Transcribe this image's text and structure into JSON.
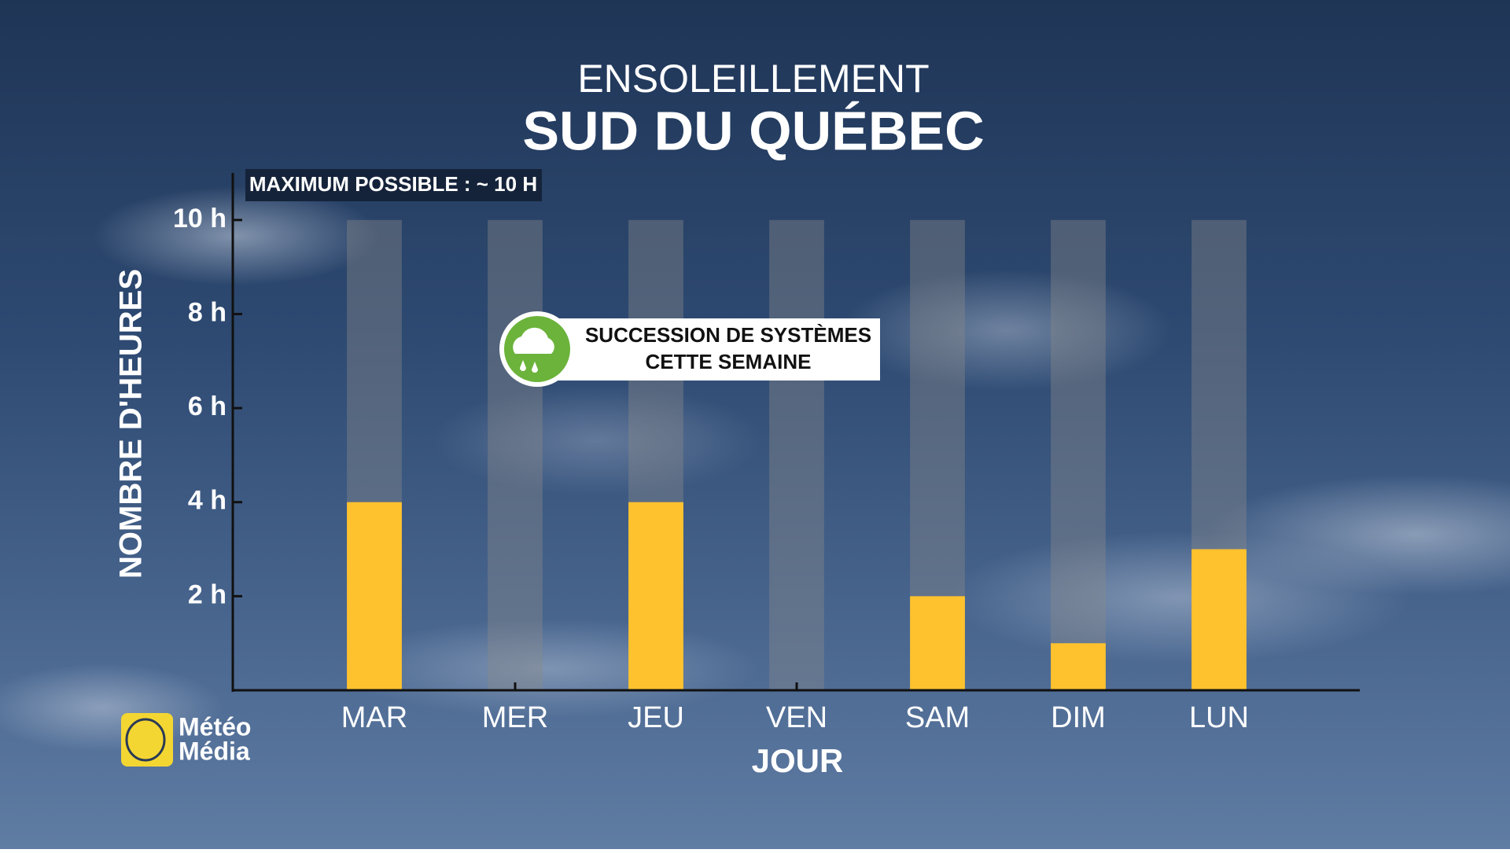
{
  "chart_data": {
    "type": "bar",
    "title": "ENSOLEILLEMENT",
    "subtitle": "SUD DU QUÉBEC",
    "max_label": "MAXIMUM POSSIBLE : ~ 10 H",
    "annotation": [
      "SUCCESSION DE SYSTÈMES",
      "CETTE SEMAINE"
    ],
    "xlabel": "JOUR",
    "ylabel": "NOMBRE D'HEURES",
    "categories": [
      "MAR",
      "MER",
      "JEU",
      "VEN",
      "SAM",
      "DIM",
      "LUN"
    ],
    "values": [
      4,
      0,
      4,
      0,
      2,
      1,
      3
    ],
    "color": "#fec22f",
    "background_values": [
      10,
      10,
      10,
      10,
      10,
      10,
      10
    ],
    "background_color": "#8a8a8a",
    "ylim": [
      0,
      11
    ],
    "yticks": [
      {
        "value": 2,
        "label": "2 h"
      },
      {
        "value": 4,
        "label": "4 h"
      },
      {
        "value": 6,
        "label": "6 h"
      },
      {
        "value": 8,
        "label": "8 h"
      },
      {
        "value": 10,
        "label": "10 h"
      }
    ],
    "grid": false
  },
  "logo": [
    "Météo",
    "Média"
  ]
}
